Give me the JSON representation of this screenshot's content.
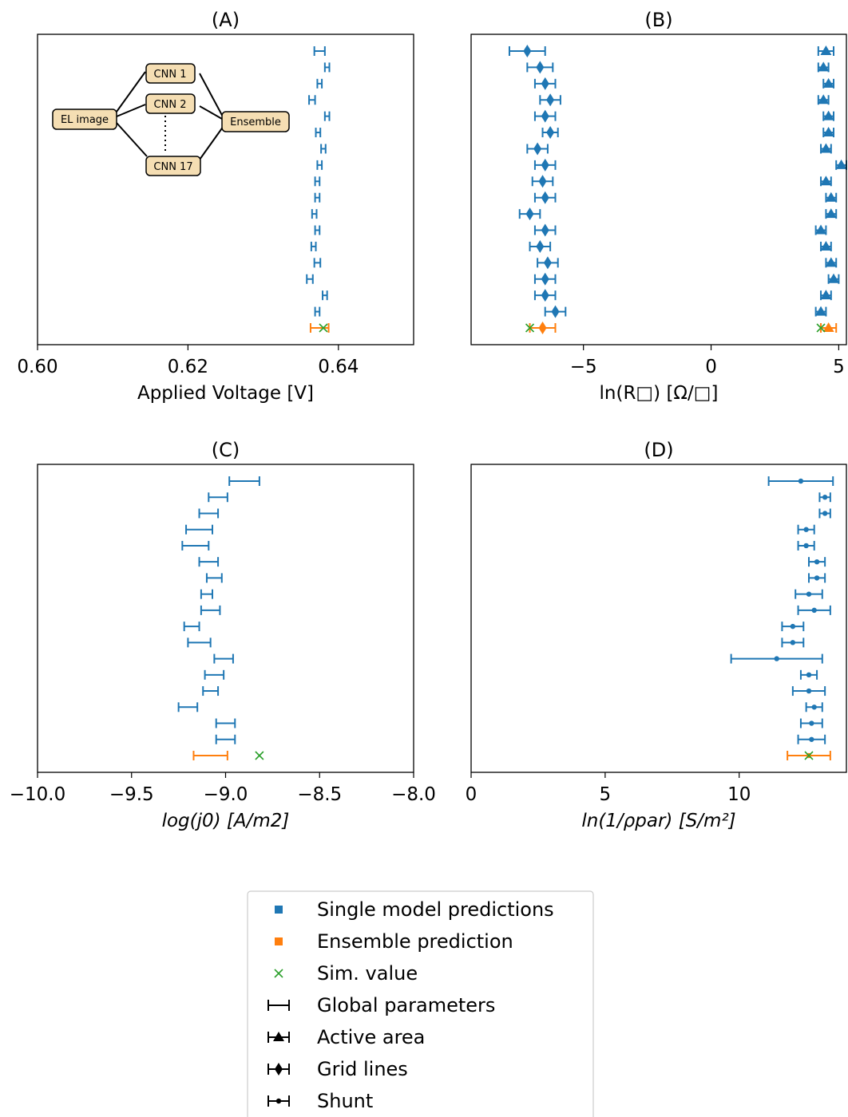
{
  "colors": {
    "single": "#1f77b4",
    "ensemble": "#ff7f0e",
    "sim": "#2ca02c",
    "black": "#000000",
    "flow_box": "#f5deb3"
  },
  "inset": {
    "input": "EL image",
    "cnn1": "CNN 1",
    "cnn2": "CNN 2",
    "cnn17": "CNN 17",
    "output": "Ensemble"
  },
  "legend": {
    "items": [
      {
        "label": "Single model predictions",
        "marker": "square",
        "color_key": "single"
      },
      {
        "label": "Ensemble prediction",
        "marker": "square",
        "color_key": "ensemble"
      },
      {
        "label": "Sim. value",
        "marker": "x",
        "color_key": "sim"
      },
      {
        "label": "Global parameters",
        "marker": "errorbar",
        "color_key": "black"
      },
      {
        "label": "Active area",
        "marker": "errorbar-triangle",
        "color_key": "black"
      },
      {
        "label": "Grid lines",
        "marker": "errorbar-diamond",
        "color_key": "black"
      },
      {
        "label": "Shunt",
        "marker": "errorbar-dot",
        "color_key": "black"
      }
    ]
  },
  "chart_data": [
    {
      "panel": "A",
      "type": "scatter",
      "title": "(A)",
      "xlabel": "Applied Voltage [V]",
      "xlim": [
        0.6,
        0.65
      ],
      "xticks": [
        0.6,
        0.62,
        0.64
      ],
      "xtick_labels": [
        "0.60",
        "0.62",
        "0.64"
      ],
      "yaxis": "model index (no ticks)",
      "single_models": {
        "marker": "none",
        "values": [
          0.6375,
          0.6385,
          0.6375,
          0.6365,
          0.6385,
          0.6373,
          0.638,
          0.6375,
          0.6372,
          0.6372,
          0.6368,
          0.6372,
          0.6367,
          0.6372,
          0.6362,
          0.6382,
          0.6372
        ],
        "err": [
          0.0007,
          0.0003,
          0.0003,
          0.0004,
          0.0003,
          0.0003,
          0.0003,
          0.0003,
          0.0003,
          0.0003,
          0.0003,
          0.0003,
          0.0003,
          0.0004,
          0.0004,
          0.0003,
          0.0003
        ]
      },
      "ensemble": {
        "value": 0.6375,
        "err": 0.0012
      },
      "sim_value": 0.638
    },
    {
      "panel": "B",
      "type": "scatter",
      "title": "(B)",
      "xlabel": "ln(R□) [Ω/□]",
      "xlim": [
        -9.4,
        5.3
      ],
      "xticks": [
        -5,
        0,
        5
      ],
      "xtick_labels": [
        "−5",
        "0",
        "5"
      ],
      "yaxis": "model index (no ticks)",
      "grid_lines": {
        "marker": "diamond",
        "values": [
          -7.2,
          -6.7,
          -6.5,
          -6.3,
          -6.5,
          -6.3,
          -6.8,
          -6.5,
          -6.6,
          -6.5,
          -7.1,
          -6.5,
          -6.7,
          -6.4,
          -6.5,
          -6.5,
          -6.1
        ],
        "err": [
          0.7,
          0.5,
          0.4,
          0.4,
          0.4,
          0.3,
          0.4,
          0.4,
          0.4,
          0.4,
          0.4,
          0.4,
          0.4,
          0.4,
          0.4,
          0.4,
          0.4
        ]
      },
      "active_area": {
        "marker": "triangle",
        "values": [
          4.5,
          4.4,
          4.6,
          4.4,
          4.6,
          4.6,
          4.5,
          5.1,
          4.5,
          4.7,
          4.7,
          4.3,
          4.5,
          4.7,
          4.8,
          4.5,
          4.3
        ],
        "err": [
          0.3,
          0.2,
          0.2,
          0.2,
          0.2,
          0.2,
          0.2,
          0.2,
          0.2,
          0.2,
          0.2,
          0.2,
          0.2,
          0.2,
          0.2,
          0.2,
          0.2
        ]
      },
      "ensemble": [
        {
          "value": -6.6,
          "err": 0.5,
          "marker": "diamond"
        },
        {
          "value": 4.6,
          "err": 0.3,
          "marker": "triangle"
        }
      ],
      "sim_value": [
        -7.1,
        4.3
      ]
    },
    {
      "panel": "C",
      "type": "scatter",
      "title": "(C)",
      "xlabel": "log(j0) [A/m2]",
      "xlim": [
        -10.0,
        -8.0
      ],
      "xticks": [
        -10.0,
        -9.5,
        -9.0,
        -8.5,
        -8.0
      ],
      "xtick_labels": [
        "−10.0",
        "−9.5",
        "−9.0",
        "−8.5",
        "−8.0"
      ],
      "yaxis": "model index (no ticks)",
      "single_models": {
        "marker": "none",
        "values": [
          -8.9,
          -9.04,
          -9.09,
          -9.14,
          -9.16,
          -9.09,
          -9.06,
          -9.1,
          -9.08,
          -9.18,
          -9.14,
          -9.01,
          -9.06,
          -9.08,
          -9.2,
          -9.0,
          -9.0
        ],
        "err": [
          0.08,
          0.05,
          0.05,
          0.07,
          0.07,
          0.05,
          0.04,
          0.03,
          0.05,
          0.04,
          0.06,
          0.05,
          0.05,
          0.04,
          0.05,
          0.05,
          0.05
        ]
      },
      "ensemble": {
        "value": -9.08,
        "err": 0.09
      },
      "sim_value": -8.82
    },
    {
      "panel": "D",
      "type": "scatter",
      "title": "(D)",
      "xlabel": "ln(1/ρpar) [S/m²]",
      "xlim": [
        0,
        14
      ],
      "xticks": [
        0,
        5,
        10
      ],
      "xtick_labels": [
        "0",
        "5",
        "10"
      ],
      "yaxis": "model index (no ticks)",
      "shunt": {
        "marker": "dot",
        "values": [
          12.3,
          13.2,
          13.2,
          12.5,
          12.5,
          12.9,
          12.9,
          12.6,
          12.8,
          12.0,
          12.0,
          11.4,
          12.6,
          12.6,
          12.8,
          12.7,
          12.7
        ],
        "err": [
          1.2,
          0.2,
          0.2,
          0.3,
          0.3,
          0.3,
          0.3,
          0.5,
          0.6,
          0.4,
          0.4,
          1.7,
          0.3,
          0.6,
          0.3,
          0.4,
          0.5
        ]
      },
      "ensemble": {
        "value": 12.6,
        "err": 0.8
      },
      "sim_value": 12.6
    }
  ]
}
